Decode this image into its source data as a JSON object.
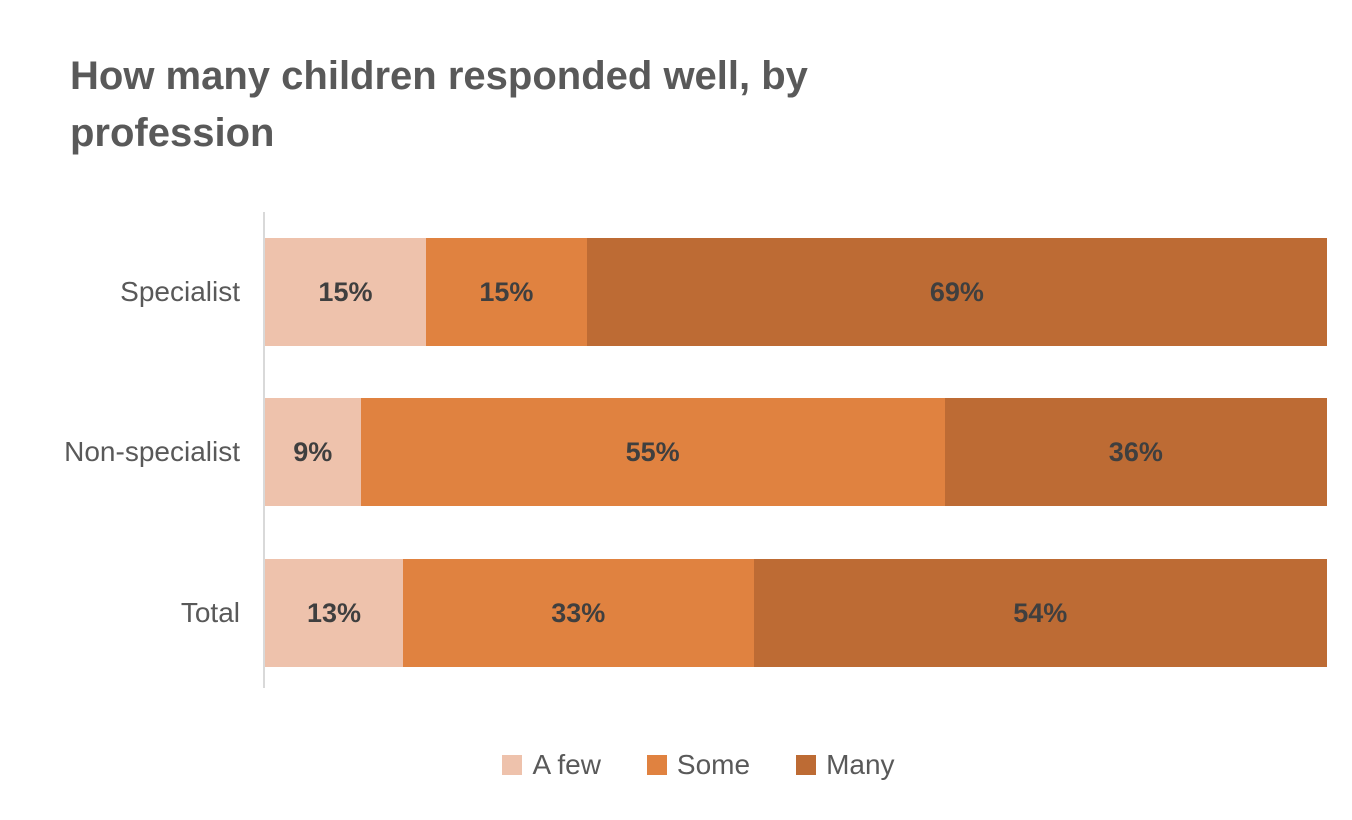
{
  "chart_data": {
    "type": "bar",
    "orientation": "horizontal",
    "stacked": true,
    "title": "How many children responded well, by profession",
    "categories": [
      "Specialist",
      "Non-specialist",
      "Total"
    ],
    "series": [
      {
        "name": "A few",
        "color": "#eec2ac",
        "values": [
          15,
          9,
          13
        ]
      },
      {
        "name": "Some",
        "color": "#e08240",
        "values": [
          15,
          55,
          33
        ]
      },
      {
        "name": "Many",
        "color": "#bd6b34",
        "values": [
          69,
          36,
          54
        ]
      }
    ],
    "value_suffix": "%",
    "xlim": [
      0,
      100
    ],
    "grid": false,
    "legend_position": "bottom",
    "legend_labels": [
      "A few",
      "Some",
      "Many"
    ]
  },
  "style_colors": {
    "title_text": "#595959",
    "category_text": "#595959",
    "data_label_text": "#3f3f3f",
    "axis_line": "#d9d9d9",
    "background": "#ffffff"
  }
}
